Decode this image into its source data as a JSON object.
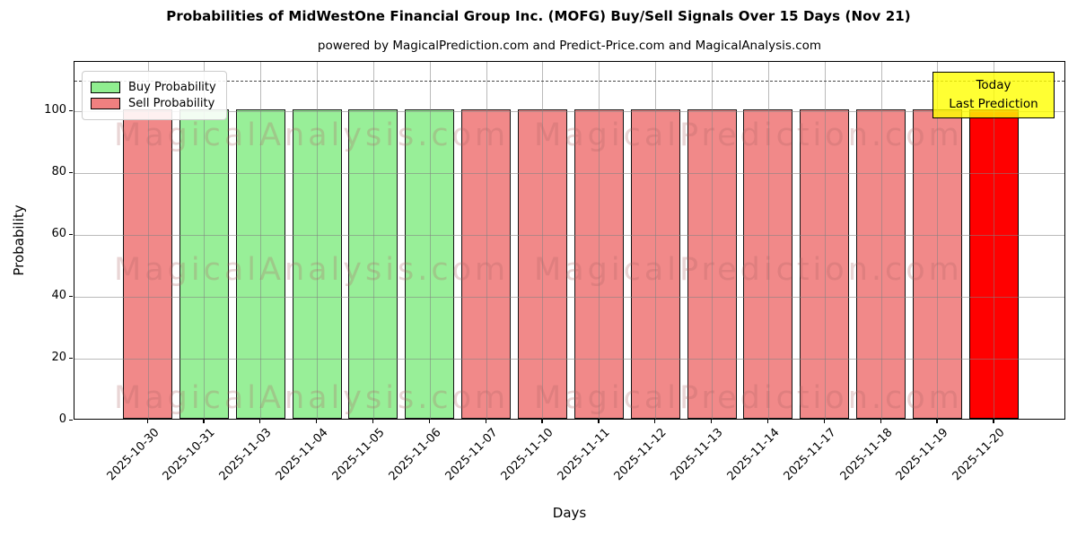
{
  "title": "Probabilities of MidWestOne Financial Group Inc. (MOFG) Buy/Sell Signals Over 15 Days (Nov 21)",
  "subtitle": "powered by MagicalPrediction.com and Predict-Price.com and MagicalAnalysis.com",
  "legend": [
    {
      "label": "Buy Probability",
      "color": "#90EE90"
    },
    {
      "label": "Sell Probability",
      "color": "#F08080"
    }
  ],
  "annotation": {
    "line1": "Today",
    "line2": "Last Prediction",
    "bg": "#FFFF00"
  },
  "watermarks": {
    "left": "MagicalAnalysis.com",
    "right": "MagicalPrediction.com"
  },
  "chart_data": {
    "type": "bar",
    "title": "Probabilities of MidWestOne Financial Group Inc. (MOFG) Buy/Sell Signals Over 15 Days (Nov 21)",
    "xlabel": "Days",
    "ylabel": "Probability",
    "ylim": [
      0,
      116
    ],
    "yticks": [
      0,
      20,
      40,
      60,
      80,
      100
    ],
    "grid": true,
    "legend_position": "upper left",
    "dashed_threshold_y": 110,
    "categories": [
      "2025-10-30",
      "2025-10-31",
      "2025-11-03",
      "2025-11-04",
      "2025-11-05",
      "2025-11-06",
      "2025-11-07",
      "2025-11-10",
      "2025-11-11",
      "2025-11-12",
      "2025-11-13",
      "2025-11-14",
      "2025-11-17",
      "2025-11-18",
      "2025-11-19",
      "2025-11-20"
    ],
    "values": [
      100,
      100,
      100,
      100,
      100,
      100,
      100,
      100,
      100,
      100,
      100,
      100,
      100,
      100,
      100,
      100
    ],
    "signal": [
      "sell",
      "buy",
      "buy",
      "buy",
      "buy",
      "buy",
      "sell",
      "sell",
      "sell",
      "sell",
      "sell",
      "sell",
      "sell",
      "sell",
      "sell",
      "today"
    ],
    "colors": {
      "buy": "#90EE90",
      "sell": "#F08080",
      "today": "#FF0000"
    }
  }
}
